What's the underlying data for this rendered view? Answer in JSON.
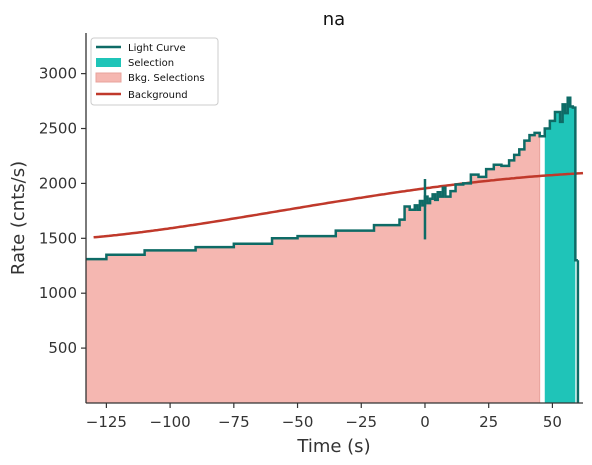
{
  "chart_data": {
    "type": "line",
    "title": "na",
    "xlabel": "Time (s)",
    "ylabel": "Rate (cnts/s)",
    "xlim": [
      -133,
      62
    ],
    "ylim": [
      0,
      3370
    ],
    "xticks": [
      -125,
      -100,
      -75,
      -50,
      -25,
      0,
      25,
      50
    ],
    "xtick_labels": [
      "−125",
      "−100",
      "−75",
      "−50",
      "−25",
      "0",
      "25",
      "50"
    ],
    "yticks": [
      500,
      1000,
      1500,
      2000,
      2500,
      3000
    ],
    "ytick_labels": [
      "500",
      "1000",
      "1500",
      "2000",
      "2500",
      "3000"
    ],
    "grid": false,
    "legend_position": "top-left",
    "legend": [
      {
        "label": "Light Curve",
        "kind": "line"
      },
      {
        "label": "Selection",
        "kind": "patch"
      },
      {
        "label": "Bkg. Selections",
        "kind": "patch"
      },
      {
        "label": "Background",
        "kind": "line"
      }
    ],
    "colors": {
      "light_curve": "#0e6b66",
      "selection": "#1fc4b8",
      "bkg_fill": "#f5b7b1",
      "bkg_edge": "#e8a39c",
      "background": "#c0392b"
    },
    "background_poly": [
      1.96e-07,
      -4.845e-05,
      -0.012,
      3.12,
      1955
    ],
    "series": [
      {
        "name": "Light Curve",
        "x": [
          -133,
          -125,
          -110,
          -90,
          -75,
          -60,
          -50,
          -35,
          -20,
          -10,
          -8,
          -6,
          -4,
          -3,
          -2,
          -1,
          0,
          1,
          2,
          3,
          4,
          5,
          6,
          7,
          8,
          10,
          12,
          15,
          18,
          21,
          24,
          27,
          30,
          33,
          35,
          37,
          39,
          41,
          43,
          45,
          47,
          49,
          51,
          53,
          54,
          55,
          56,
          57,
          58,
          59
        ],
        "y": [
          1310,
          1350,
          1390,
          1420,
          1450,
          1500,
          1520,
          1570,
          1620,
          1670,
          1790,
          1760,
          1800,
          1760,
          1840,
          1800,
          1880,
          1820,
          1860,
          1900,
          1850,
          1920,
          1880,
          1960,
          1880,
          1930,
          1990,
          2000,
          2080,
          2060,
          2130,
          2170,
          2160,
          2210,
          2260,
          2310,
          2390,
          2440,
          2460,
          2430,
          2500,
          2570,
          2650,
          2560,
          2720,
          2640,
          2780,
          2700,
          2690,
          1300
        ]
      }
    ],
    "bkg_selections": [
      [
        -133,
        45
      ]
    ],
    "selection": [
      47,
      59
    ]
  }
}
